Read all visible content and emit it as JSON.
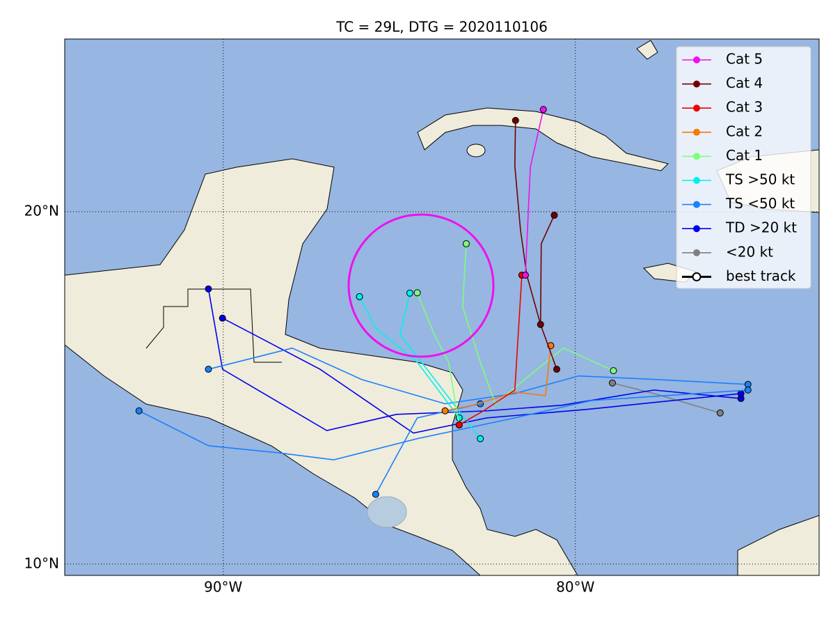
{
  "chart_data": {
    "type": "map",
    "title": "TC = 29L, DTG = 2020110106",
    "xlim": [
      -94.5,
      -73.08
    ],
    "ylim": [
      9.68,
      24.9
    ],
    "xticks": [
      {
        "value": -90,
        "label": "90°W"
      },
      {
        "value": -80,
        "label": "80°W"
      }
    ],
    "yticks": [
      {
        "value": 10,
        "label": "10°N"
      },
      {
        "value": 20,
        "label": "20°N"
      }
    ],
    "grid": true,
    "legend_position": "upper right",
    "legend": [
      {
        "name": "Cat 5",
        "color": "#ee11ee"
      },
      {
        "name": "Cat 4",
        "color": "#700000"
      },
      {
        "name": "Cat 3",
        "color": "#ee0000"
      },
      {
        "name": "Cat 2",
        "color": "#f77a0a"
      },
      {
        "name": "Cat 1",
        "color": "#7cff7c"
      },
      {
        "name": "TS >50 kt",
        "color": "#00f0f0"
      },
      {
        "name": "TS <50 kt",
        "color": "#1a80ff"
      },
      {
        "name": "TD >20 kt",
        "color": "#0000ee"
      },
      {
        "name": "<20 kt",
        "color": "#808080"
      },
      {
        "name": "best track",
        "color": "#000000"
      }
    ],
    "tracks": [
      {
        "category": "<20 kt",
        "lon": [
          -75.89,
          -77.77,
          -78.95
        ],
        "lat": [
          14.29,
          14.84,
          15.14
        ]
      },
      {
        "category": "TD >20 kt",
        "lon": [
          -75.3,
          -77.77,
          -80.38,
          -82.51,
          -85.08,
          -87.06,
          -90.02,
          -90.42
        ],
        "lat": [
          14.7,
          14.94,
          14.51,
          14.35,
          14.25,
          13.79,
          15.53,
          17.81
        ]
      },
      {
        "category": "TD >20 kt",
        "lon": [
          -75.3,
          -79.68,
          -82.51,
          -84.6,
          -87.25,
          -90.02
        ],
        "lat": [
          14.84,
          14.39,
          14.15,
          13.72,
          15.53,
          16.98
        ]
      },
      {
        "category": "TS <50 kt",
        "lon": [
          -75.1,
          -77.73,
          -79.91,
          -81.72,
          -83.7,
          -86.07,
          -88.04,
          -90.42
        ],
        "lat": [
          15.1,
          15.24,
          15.34,
          14.84,
          14.55,
          15.24,
          16.13,
          15.53
        ]
      },
      {
        "category": "TS <50 kt",
        "lon": [
          -75.1,
          -79.55,
          -81.72,
          -84.49,
          -86.86,
          -88.44,
          -90.42,
          -92.39
        ],
        "lat": [
          14.94,
          14.64,
          14.15,
          13.56,
          12.96,
          13.16,
          13.36,
          14.35
        ]
      },
      {
        "category": "TS <50 kt",
        "lon": [
          -82.7,
          -84.49,
          -85.67
        ],
        "lat": [
          14.55,
          14.15,
          11.98
        ]
      },
      {
        "category": "TS >50 kt",
        "lon": [
          -86.13,
          -85.67,
          -84.49,
          -83.3
        ],
        "lat": [
          17.59,
          16.7,
          15.73,
          14.15
        ]
      },
      {
        "category": "TS >50 kt",
        "lon": [
          -84.7,
          -84.98,
          -83.99,
          -82.7
        ],
        "lat": [
          17.69,
          16.52,
          15.24,
          13.56
        ]
      },
      {
        "category": "Cat 1",
        "lon": [
          -83.1,
          -83.2,
          -82.7,
          -82.27,
          -81.32,
          -80.34,
          -78.92
        ],
        "lat": [
          19.09,
          17.3,
          15.73,
          14.54,
          15.34,
          16.13,
          15.49
        ]
      },
      {
        "category": "Cat 1",
        "lon": [
          -84.49,
          -84.0,
          -83.6,
          -83.3
        ],
        "lat": [
          17.7,
          16.5,
          15.73,
          13.95
        ]
      },
      {
        "category": "Cat 2",
        "lon": [
          -80.7,
          -80.85,
          -81.72,
          -82.9,
          -83.7
        ],
        "lat": [
          16.2,
          14.78,
          14.88,
          14.51,
          14.35
        ]
      },
      {
        "category": "Cat 3",
        "lon": [
          -81.52,
          -81.6,
          -81.72,
          -82.61,
          -83.3
        ],
        "lat": [
          18.2,
          16.9,
          14.94,
          14.35,
          13.95
        ]
      },
      {
        "category": "Cat 4",
        "lon": [
          -81.7,
          -81.72,
          -81.56,
          -81.38,
          -80.99,
          -80.53
        ],
        "lat": [
          22.59,
          21.3,
          19.49,
          18.2,
          16.8,
          15.53
        ]
      },
      {
        "category": "Cat 4",
        "lon": [
          -80.6,
          -80.97,
          -80.99
        ],
        "lat": [
          19.9,
          19.09,
          16.8
        ]
      },
      {
        "category": "Cat 5",
        "lon": [
          -80.91,
          -81.28,
          -81.42
        ],
        "lat": [
          22.9,
          21.26,
          18.2
        ]
      }
    ]
  }
}
